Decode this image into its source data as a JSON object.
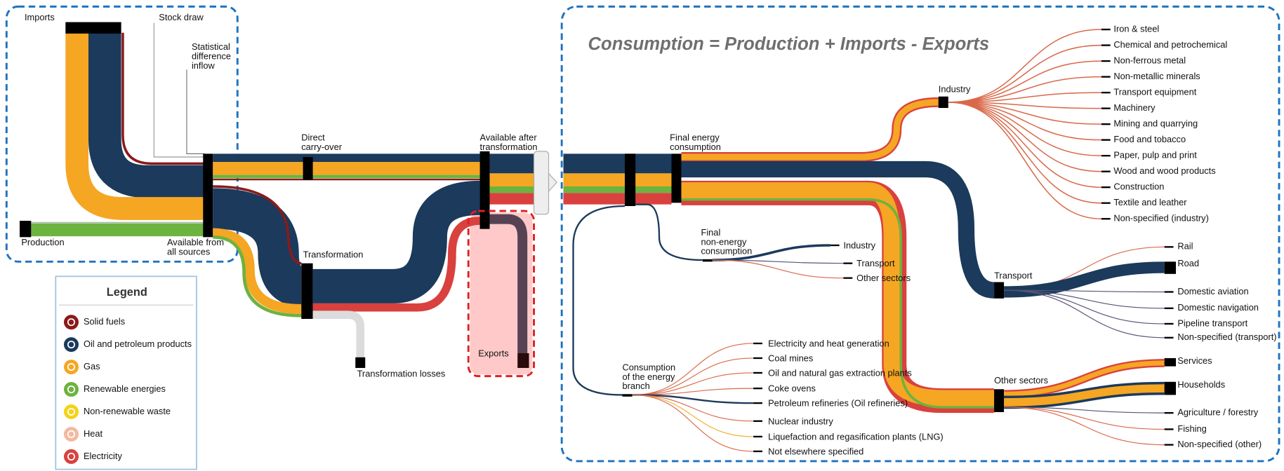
{
  "title": "Consumption = Production + Imports - Exports",
  "nodes": {
    "imports": "Imports",
    "stock_draw": "Stock draw",
    "statistical_difference": [
      "Statistical",
      "difference",
      "inflow"
    ],
    "production": "Production",
    "available_from_all_sources": [
      "Available from",
      "all sources"
    ],
    "direct_carry_over": [
      "Direct",
      "carry-over"
    ],
    "transformation": "Transformation",
    "transformation_losses": "Transformation losses",
    "available_after_transformation": [
      "Available after",
      "transformation"
    ],
    "exports": "Exports",
    "final_energy_consumption": [
      "Final energy",
      "consumption"
    ],
    "final_non_energy_consumption": [
      "Final",
      "non-energy",
      "consumption"
    ],
    "consumption_of_energy_branch": [
      "Consumption",
      "of the energy",
      "branch"
    ],
    "industry": "Industry",
    "transport": "Transport",
    "other_sectors": "Other sectors"
  },
  "industry_subsectors": [
    "Iron & steel",
    "Chemical and petrochemical",
    "Non-ferrous metal",
    "Non-metallic minerals",
    "Transport equipment",
    "Machinery",
    "Mining and quarrying",
    "Food and tobacco",
    "Paper, pulp and print",
    "Wood and wood products",
    "Construction",
    "Textile and leather",
    "Non-specified (industry)"
  ],
  "transport_subsectors": [
    "Rail",
    "Road",
    "Domestic aviation",
    "Domestic navigation",
    "Pipeline transport",
    "Non-specified (transport)"
  ],
  "other_subsectors": [
    "Services",
    "Households",
    "Agriculture / forestry",
    "Fishing",
    "Non-specified (other)"
  ],
  "non_energy_subsectors": [
    "Industry",
    "Transport",
    "Other sectors"
  ],
  "energy_branch_subsectors": [
    "Electricity and heat generation",
    "Coal mines",
    "Oil and natural gas extraction plants",
    "Coke ovens",
    "Petroleum refineries (Oil refineries)",
    "Nuclear industry",
    "Liquefaction and regasification plants (LNG)",
    "Not elsewhere specified"
  ],
  "legend": {
    "title": "Legend",
    "items": [
      "Solid fuels",
      "Oil and petroleum products",
      "Gas",
      "Renewable energies",
      "Non-renewable waste",
      "Heat",
      "Electricity"
    ]
  }
}
